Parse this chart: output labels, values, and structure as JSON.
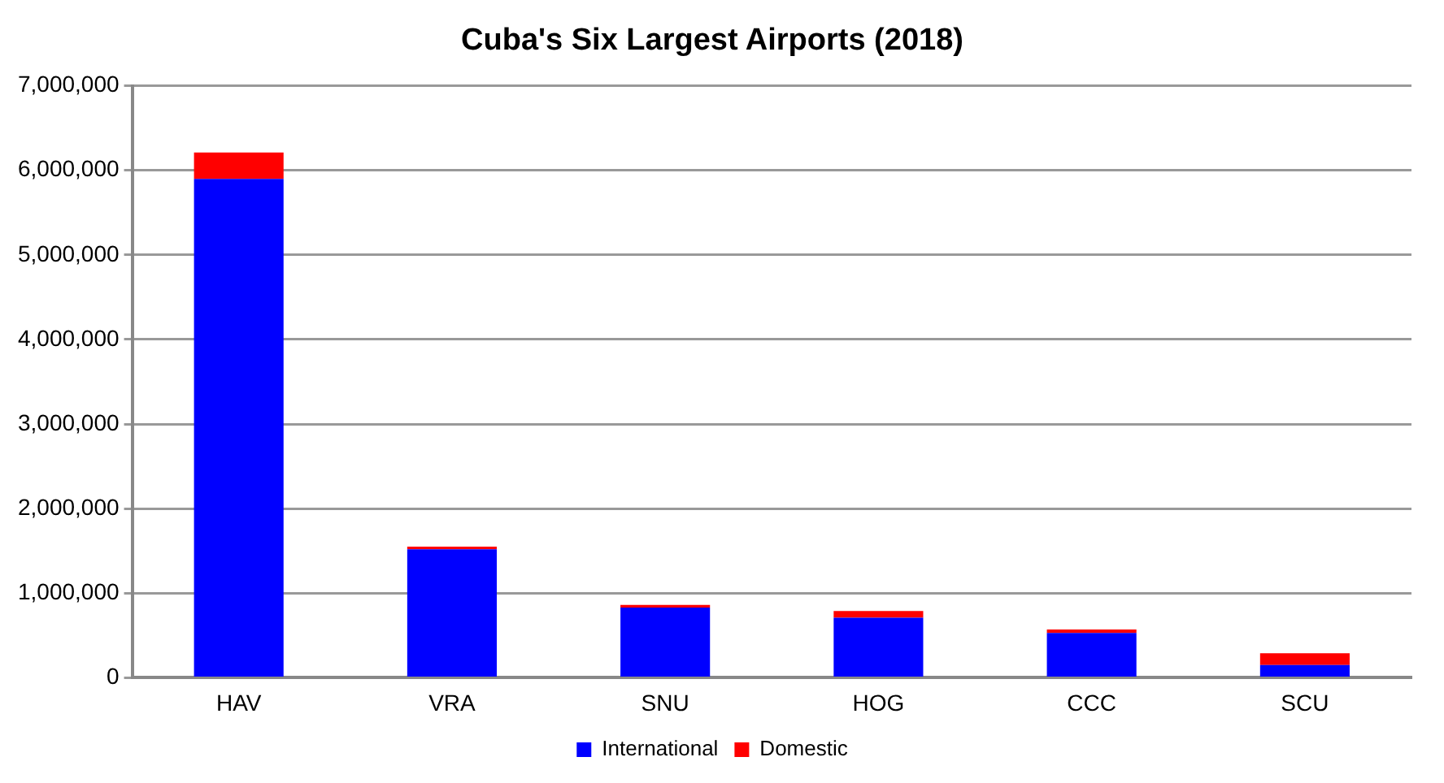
{
  "chart_data": {
    "type": "bar",
    "title": "Cuba's Six Largest Airports (2018)",
    "categories": [
      "HAV",
      "VRA",
      "SNU",
      "HOG",
      "CCC",
      "SCU"
    ],
    "stacked": true,
    "series": [
      {
        "name": "International",
        "color": "#0000ff",
        "values": [
          5900000,
          1520000,
          830000,
          710000,
          530000,
          150000
        ]
      },
      {
        "name": "Domestic",
        "color": "#ff0000",
        "values": [
          310000,
          30000,
          30000,
          80000,
          40000,
          140000
        ]
      }
    ],
    "ylim": [
      0,
      7000000
    ],
    "yticks": [
      0,
      {
        "value": 1000000,
        "label": "1,000,000"
      },
      {
        "value": 2000000,
        "label": "2,000,000"
      },
      {
        "value": 3000000,
        "label": "3,000,000"
      },
      {
        "value": 4000000,
        "label": "4,000,000"
      },
      {
        "value": 5000000,
        "label": "5,000,000"
      },
      {
        "value": 6000000,
        "label": "6,000,000"
      },
      {
        "value": 7000000,
        "label": "7,000,000"
      }
    ],
    "grid": "y",
    "legend": "bottom"
  }
}
